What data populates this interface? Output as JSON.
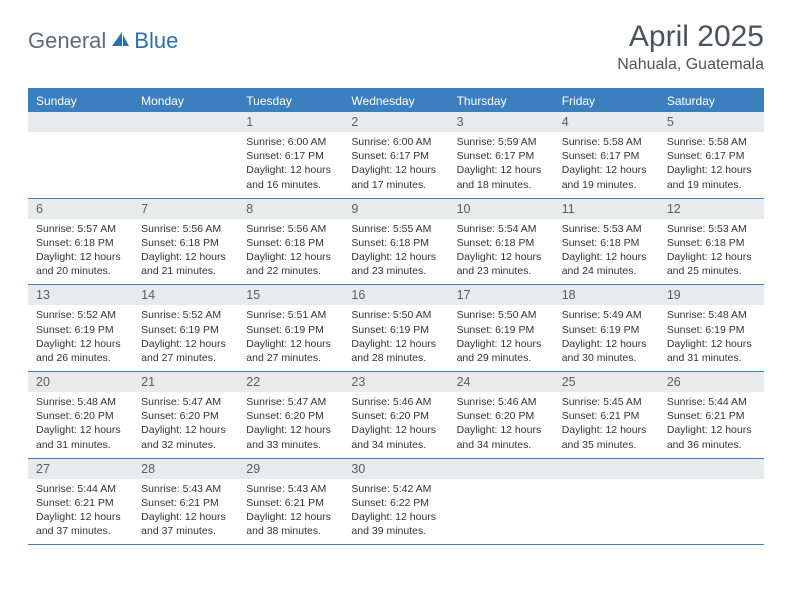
{
  "brand": {
    "part1": "General",
    "part2": "Blue"
  },
  "title": "April 2025",
  "location": "Nahuala, Guatemala",
  "colors": {
    "header_bar": "#3b7fbf",
    "daynum_bg": "#e8eaec",
    "text_dark": "#4a545e",
    "body_text": "#333333",
    "logo_gray": "#5f6b76",
    "logo_blue": "#2c6fb0",
    "page_bg": "#ffffff"
  },
  "typography": {
    "title_pt": 30,
    "location_pt": 16,
    "dow_pt": 12,
    "body_pt": 10.5
  },
  "dow": [
    "Sunday",
    "Monday",
    "Tuesday",
    "Wednesday",
    "Thursday",
    "Friday",
    "Saturday"
  ],
  "weeks": [
    [
      {
        "n": "",
        "empty": true
      },
      {
        "n": "",
        "empty": true
      },
      {
        "n": "1",
        "sunrise": "Sunrise: 6:00 AM",
        "sunset": "Sunset: 6:17 PM",
        "day1": "Daylight: 12 hours",
        "day2": "and 16 minutes."
      },
      {
        "n": "2",
        "sunrise": "Sunrise: 6:00 AM",
        "sunset": "Sunset: 6:17 PM",
        "day1": "Daylight: 12 hours",
        "day2": "and 17 minutes."
      },
      {
        "n": "3",
        "sunrise": "Sunrise: 5:59 AM",
        "sunset": "Sunset: 6:17 PM",
        "day1": "Daylight: 12 hours",
        "day2": "and 18 minutes."
      },
      {
        "n": "4",
        "sunrise": "Sunrise: 5:58 AM",
        "sunset": "Sunset: 6:17 PM",
        "day1": "Daylight: 12 hours",
        "day2": "and 19 minutes."
      },
      {
        "n": "5",
        "sunrise": "Sunrise: 5:58 AM",
        "sunset": "Sunset: 6:17 PM",
        "day1": "Daylight: 12 hours",
        "day2": "and 19 minutes."
      }
    ],
    [
      {
        "n": "6",
        "sunrise": "Sunrise: 5:57 AM",
        "sunset": "Sunset: 6:18 PM",
        "day1": "Daylight: 12 hours",
        "day2": "and 20 minutes."
      },
      {
        "n": "7",
        "sunrise": "Sunrise: 5:56 AM",
        "sunset": "Sunset: 6:18 PM",
        "day1": "Daylight: 12 hours",
        "day2": "and 21 minutes."
      },
      {
        "n": "8",
        "sunrise": "Sunrise: 5:56 AM",
        "sunset": "Sunset: 6:18 PM",
        "day1": "Daylight: 12 hours",
        "day2": "and 22 minutes."
      },
      {
        "n": "9",
        "sunrise": "Sunrise: 5:55 AM",
        "sunset": "Sunset: 6:18 PM",
        "day1": "Daylight: 12 hours",
        "day2": "and 23 minutes."
      },
      {
        "n": "10",
        "sunrise": "Sunrise: 5:54 AM",
        "sunset": "Sunset: 6:18 PM",
        "day1": "Daylight: 12 hours",
        "day2": "and 23 minutes."
      },
      {
        "n": "11",
        "sunrise": "Sunrise: 5:53 AM",
        "sunset": "Sunset: 6:18 PM",
        "day1": "Daylight: 12 hours",
        "day2": "and 24 minutes."
      },
      {
        "n": "12",
        "sunrise": "Sunrise: 5:53 AM",
        "sunset": "Sunset: 6:18 PM",
        "day1": "Daylight: 12 hours",
        "day2": "and 25 minutes."
      }
    ],
    [
      {
        "n": "13",
        "sunrise": "Sunrise: 5:52 AM",
        "sunset": "Sunset: 6:19 PM",
        "day1": "Daylight: 12 hours",
        "day2": "and 26 minutes."
      },
      {
        "n": "14",
        "sunrise": "Sunrise: 5:52 AM",
        "sunset": "Sunset: 6:19 PM",
        "day1": "Daylight: 12 hours",
        "day2": "and 27 minutes."
      },
      {
        "n": "15",
        "sunrise": "Sunrise: 5:51 AM",
        "sunset": "Sunset: 6:19 PM",
        "day1": "Daylight: 12 hours",
        "day2": "and 27 minutes."
      },
      {
        "n": "16",
        "sunrise": "Sunrise: 5:50 AM",
        "sunset": "Sunset: 6:19 PM",
        "day1": "Daylight: 12 hours",
        "day2": "and 28 minutes."
      },
      {
        "n": "17",
        "sunrise": "Sunrise: 5:50 AM",
        "sunset": "Sunset: 6:19 PM",
        "day1": "Daylight: 12 hours",
        "day2": "and 29 minutes."
      },
      {
        "n": "18",
        "sunrise": "Sunrise: 5:49 AM",
        "sunset": "Sunset: 6:19 PM",
        "day1": "Daylight: 12 hours",
        "day2": "and 30 minutes."
      },
      {
        "n": "19",
        "sunrise": "Sunrise: 5:48 AM",
        "sunset": "Sunset: 6:19 PM",
        "day1": "Daylight: 12 hours",
        "day2": "and 31 minutes."
      }
    ],
    [
      {
        "n": "20",
        "sunrise": "Sunrise: 5:48 AM",
        "sunset": "Sunset: 6:20 PM",
        "day1": "Daylight: 12 hours",
        "day2": "and 31 minutes."
      },
      {
        "n": "21",
        "sunrise": "Sunrise: 5:47 AM",
        "sunset": "Sunset: 6:20 PM",
        "day1": "Daylight: 12 hours",
        "day2": "and 32 minutes."
      },
      {
        "n": "22",
        "sunrise": "Sunrise: 5:47 AM",
        "sunset": "Sunset: 6:20 PM",
        "day1": "Daylight: 12 hours",
        "day2": "and 33 minutes."
      },
      {
        "n": "23",
        "sunrise": "Sunrise: 5:46 AM",
        "sunset": "Sunset: 6:20 PM",
        "day1": "Daylight: 12 hours",
        "day2": "and 34 minutes."
      },
      {
        "n": "24",
        "sunrise": "Sunrise: 5:46 AM",
        "sunset": "Sunset: 6:20 PM",
        "day1": "Daylight: 12 hours",
        "day2": "and 34 minutes."
      },
      {
        "n": "25",
        "sunrise": "Sunrise: 5:45 AM",
        "sunset": "Sunset: 6:21 PM",
        "day1": "Daylight: 12 hours",
        "day2": "and 35 minutes."
      },
      {
        "n": "26",
        "sunrise": "Sunrise: 5:44 AM",
        "sunset": "Sunset: 6:21 PM",
        "day1": "Daylight: 12 hours",
        "day2": "and 36 minutes."
      }
    ],
    [
      {
        "n": "27",
        "sunrise": "Sunrise: 5:44 AM",
        "sunset": "Sunset: 6:21 PM",
        "day1": "Daylight: 12 hours",
        "day2": "and 37 minutes."
      },
      {
        "n": "28",
        "sunrise": "Sunrise: 5:43 AM",
        "sunset": "Sunset: 6:21 PM",
        "day1": "Daylight: 12 hours",
        "day2": "and 37 minutes."
      },
      {
        "n": "29",
        "sunrise": "Sunrise: 5:43 AM",
        "sunset": "Sunset: 6:21 PM",
        "day1": "Daylight: 12 hours",
        "day2": "and 38 minutes."
      },
      {
        "n": "30",
        "sunrise": "Sunrise: 5:42 AM",
        "sunset": "Sunset: 6:22 PM",
        "day1": "Daylight: 12 hours",
        "day2": "and 39 minutes."
      },
      {
        "n": "",
        "empty": true
      },
      {
        "n": "",
        "empty": true
      },
      {
        "n": "",
        "empty": true
      }
    ]
  ]
}
